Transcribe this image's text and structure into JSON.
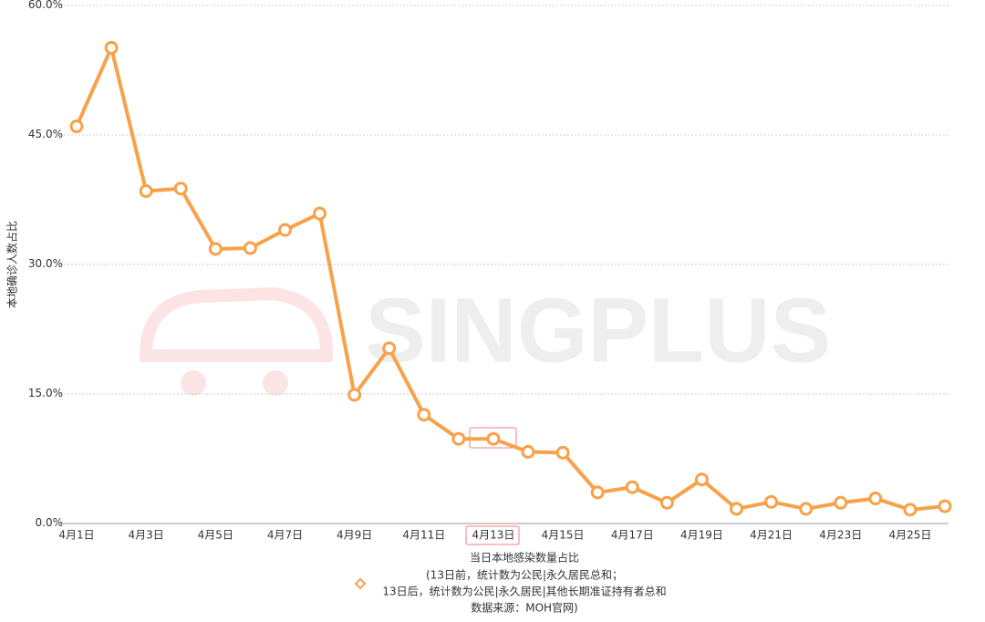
{
  "chart_data": {
    "type": "line",
    "y_label": "本地确诊人数占比",
    "watermark": "SINGPLUS",
    "categories": [
      "4月1日",
      null,
      "4月3日",
      null,
      "4月5日",
      null,
      "4月7日",
      null,
      "4月9日",
      null,
      "4月11日",
      null,
      "4月13日",
      null,
      "4月15日",
      null,
      "4月17日",
      null,
      "4月19日",
      null,
      "4月21日",
      null,
      "4月23日",
      null,
      "4月25日",
      null
    ],
    "series": [
      {
        "name": "当日本地感染数量占比",
        "color": "#f7a24a",
        "values": [
          46.0,
          55.1,
          38.5,
          38.8,
          31.8,
          31.9,
          34.0,
          35.9,
          14.9,
          20.3,
          12.6,
          9.8,
          9.8,
          8.3,
          8.2,
          3.6,
          4.2,
          2.4,
          5.1,
          1.7,
          2.5,
          1.7,
          2.4,
          2.9,
          1.6,
          2.0
        ]
      }
    ],
    "legend_note": [
      "(13日前，统计数为公民|永久居民总和；",
      "13日后，统计数为公民|永久居民|其他长期准证持有者总和",
      "数据来源：MOH官网)"
    ],
    "ylim": [
      0,
      60
    ],
    "yticks": [
      {
        "value": 0,
        "label": "0.0%"
      },
      {
        "value": 15,
        "label": "15.0%"
      },
      {
        "value": 30,
        "label": "30.0%"
      },
      {
        "value": 45,
        "label": "45.0%"
      },
      {
        "value": 60,
        "label": "60.0%"
      }
    ],
    "grid": true
  }
}
